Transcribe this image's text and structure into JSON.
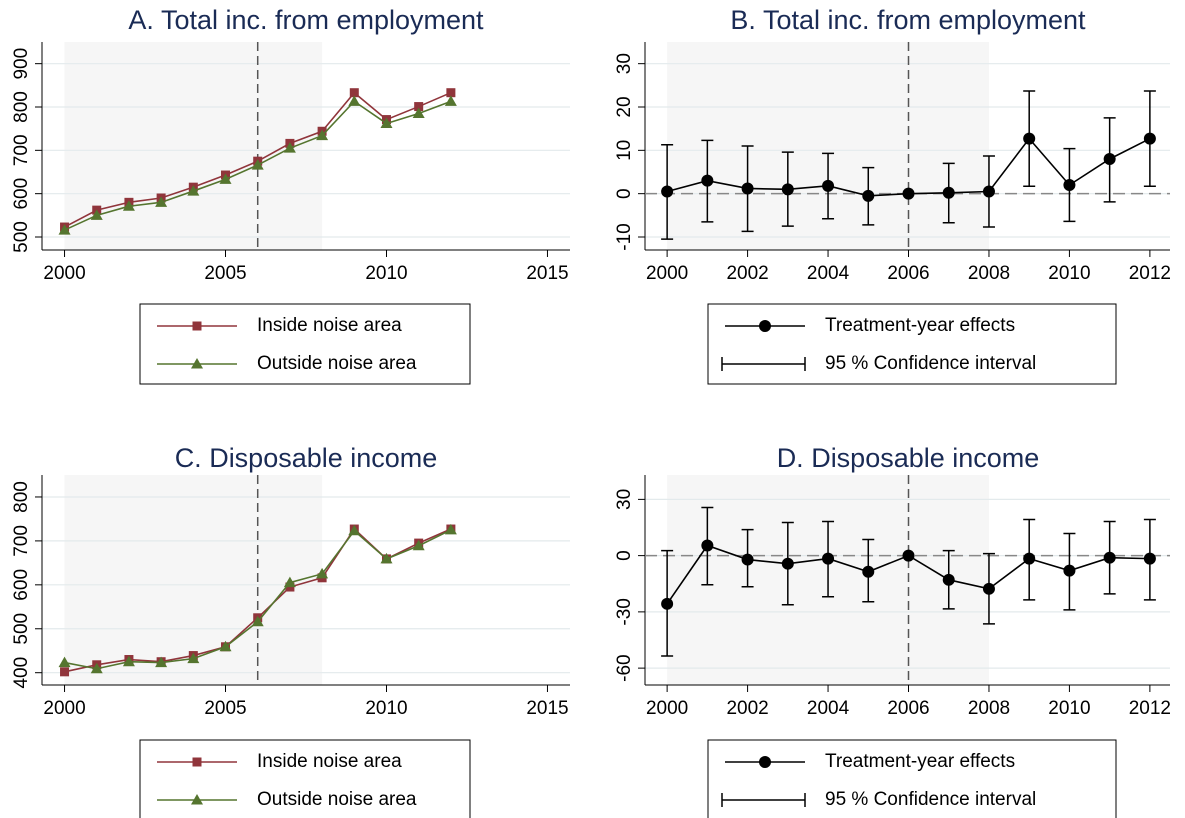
{
  "chart_data": [
    {
      "type": "line",
      "title": "A. Total inc. from employment",
      "x": [
        2000,
        2001,
        2002,
        2003,
        2004,
        2005,
        2006,
        2007,
        2008,
        2009,
        2010,
        2011,
        2012
      ],
      "series": [
        {
          "name": "Inside noise area",
          "color": "#90353b",
          "marker": "square",
          "values": [
            523,
            562,
            580,
            590,
            615,
            643,
            675,
            716,
            744,
            833,
            771,
            801,
            833
          ]
        },
        {
          "name": "Outside noise area",
          "color": "#55752f",
          "marker": "triangle",
          "values": [
            516,
            550,
            571,
            580,
            606,
            633,
            666,
            705,
            734,
            813,
            762,
            785,
            813
          ]
        }
      ],
      "xlim": [
        1999.3,
        2015.7
      ],
      "xticks": [
        2000,
        2005,
        2010,
        2015
      ],
      "ylim": [
        470,
        950
      ],
      "yticks": [
        500,
        600,
        700,
        800,
        900
      ],
      "grid": true,
      "shade": [
        2000,
        2008
      ],
      "vline": 2006
    },
    {
      "type": "errorbar",
      "title": "B. Total inc. from employment",
      "x": [
        2000,
        2001,
        2002,
        2003,
        2004,
        2005,
        2006,
        2007,
        2008,
        2009,
        2010,
        2011,
        2012
      ],
      "series": [
        {
          "name": "Treatment-year effects",
          "color": "#000000",
          "values": [
            0.5,
            3,
            1.2,
            1,
            1.8,
            -0.5,
            0,
            0.2,
            0.5,
            12.7,
            2,
            8,
            12.7
          ],
          "lower": [
            -10.5,
            -6.5,
            -8.7,
            -7.5,
            -5.8,
            -7.2,
            null,
            -6.7,
            -7.7,
            1.7,
            -6.4,
            -1.9,
            1.7
          ],
          "upper": [
            11.3,
            12.3,
            11,
            9.6,
            9.3,
            6,
            null,
            7,
            8.7,
            23.7,
            10.4,
            17.5,
            23.7
          ]
        }
      ],
      "ci_name": "95 % Confidence interval",
      "xlim": [
        1999.45,
        2012.5
      ],
      "xticks": [
        2000,
        2002,
        2004,
        2006,
        2008,
        2010,
        2012
      ],
      "ylim": [
        -13,
        35
      ],
      "yticks": [
        -10,
        0,
        10,
        20,
        30
      ],
      "grid": true,
      "shade": [
        2000,
        2008
      ],
      "vline": 2006,
      "hline": 0
    },
    {
      "type": "line",
      "title": "C. Disposable income",
      "x": [
        2000,
        2001,
        2002,
        2003,
        2004,
        2005,
        2006,
        2007,
        2008,
        2009,
        2010,
        2011,
        2012
      ],
      "series": [
        {
          "name": "Inside noise area",
          "color": "#90353b",
          "marker": "square",
          "values": [
            402,
            418,
            430,
            425,
            439,
            459,
            525,
            595,
            616,
            727,
            659,
            695,
            727
          ]
        },
        {
          "name": "Outside noise area",
          "color": "#55752f",
          "marker": "triangle",
          "values": [
            423,
            409,
            425,
            423,
            432,
            459,
            516,
            605,
            625,
            723,
            659,
            689,
            725
          ]
        }
      ],
      "xlim": [
        1999.3,
        2015.7
      ],
      "xticks": [
        2000,
        2005,
        2010,
        2015
      ],
      "ylim": [
        372,
        850
      ],
      "yticks": [
        400,
        500,
        600,
        700,
        800
      ],
      "grid": true,
      "shade": [
        2000,
        2008
      ],
      "vline": 2006
    },
    {
      "type": "errorbar",
      "title": "D. Disposable income",
      "x": [
        2000,
        2001,
        2002,
        2003,
        2004,
        2005,
        2006,
        2007,
        2008,
        2009,
        2010,
        2011,
        2012
      ],
      "series": [
        {
          "name": "Treatment-year effects",
          "color": "#000000",
          "values": [
            -25.7,
            5.4,
            -2.1,
            -4.3,
            -1.6,
            -8.6,
            0,
            -12.9,
            -17.7,
            -1.6,
            -8,
            -1.1,
            -1.6
          ],
          "lower": [
            -53.5,
            -15.5,
            -16.6,
            -26.2,
            -21.9,
            -24.6,
            null,
            -28.4,
            -36.4,
            -23.6,
            -28.9,
            -20.4,
            -23.6
          ],
          "upper": [
            2.7,
            25.7,
            13.9,
            17.7,
            18.2,
            8.6,
            null,
            2.7,
            1.1,
            19.3,
            11.8,
            18.2,
            19.3
          ]
        }
      ],
      "ci_name": "95 % Confidence interval",
      "xlim": [
        1999.45,
        2012.5
      ],
      "xticks": [
        2000,
        2002,
        2004,
        2006,
        2008,
        2010,
        2012
      ],
      "ylim": [
        -69,
        43
      ],
      "yticks": [
        -60,
        -30,
        0,
        30
      ],
      "grid": true,
      "shade": [
        2000,
        2008
      ],
      "vline": 2006,
      "hline": 0
    }
  ]
}
